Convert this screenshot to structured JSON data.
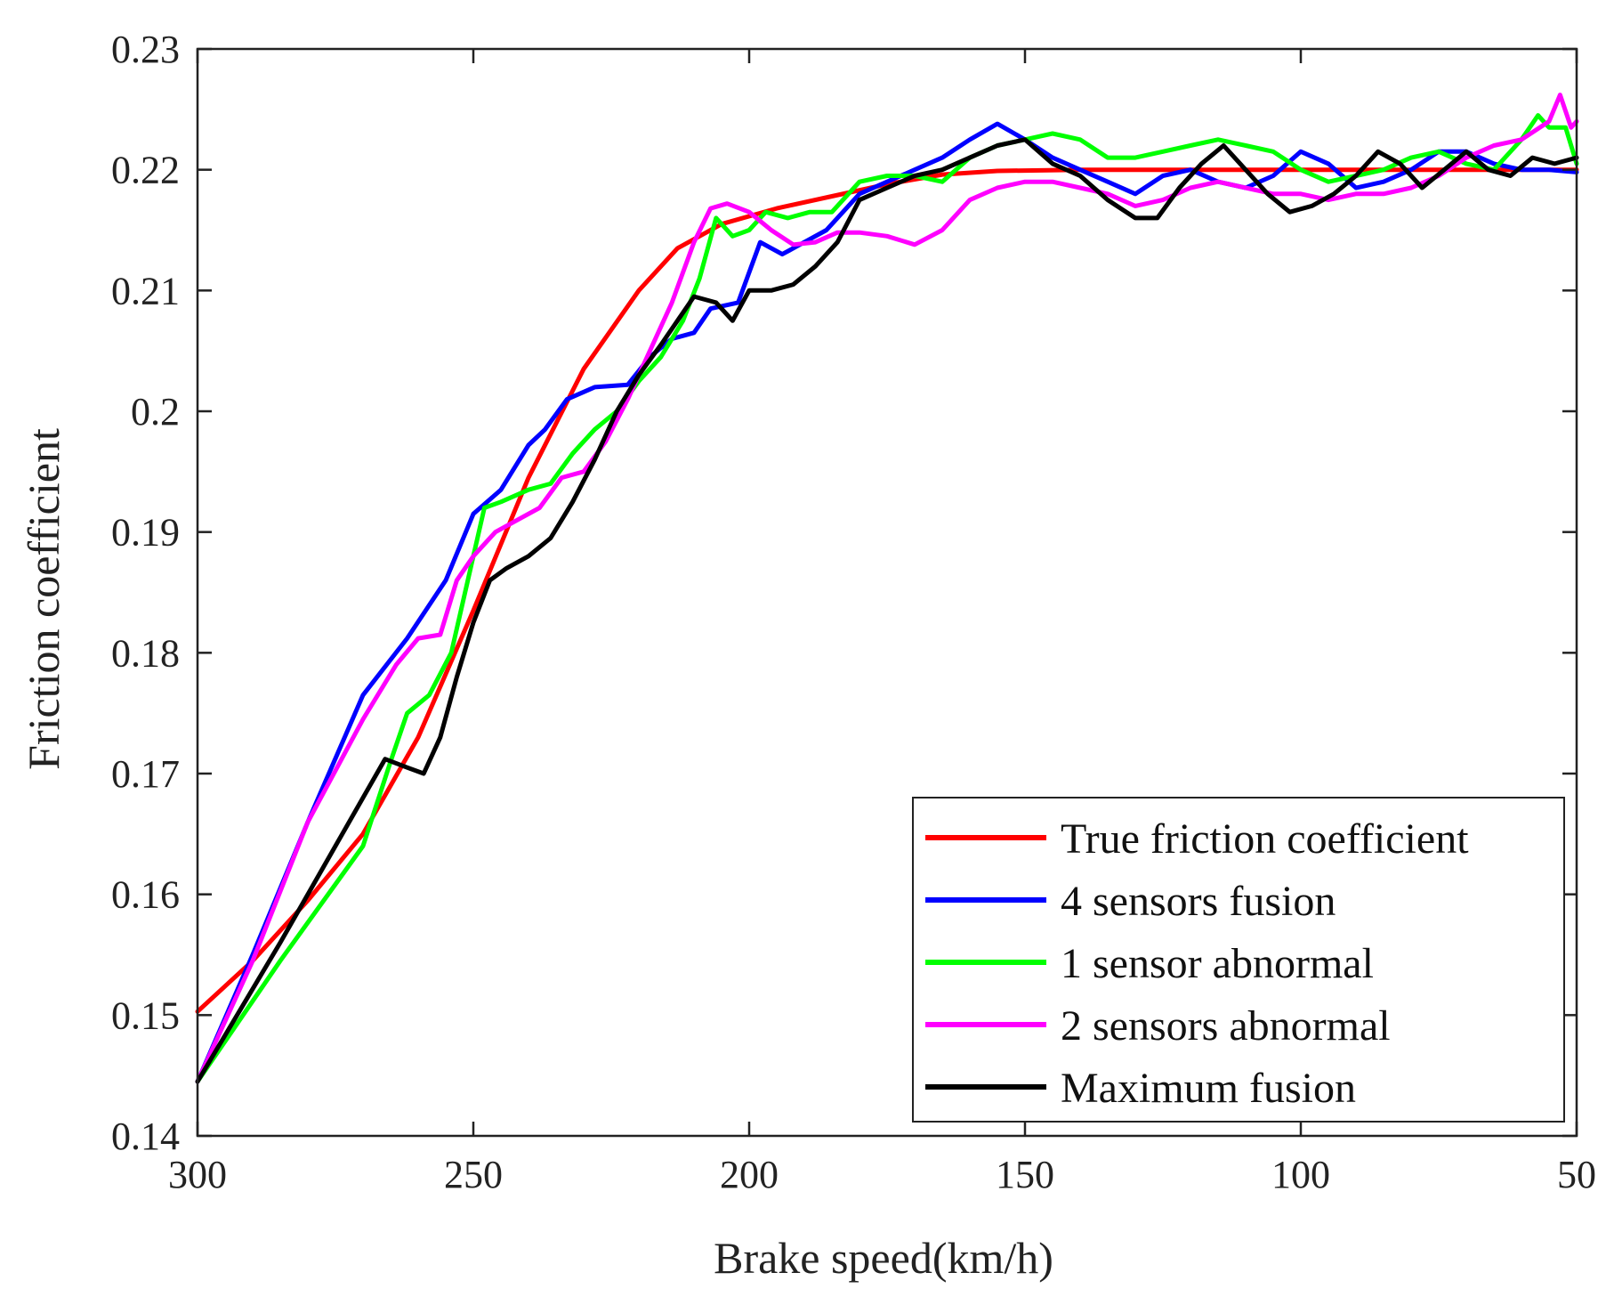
{
  "chart_data": {
    "type": "line",
    "title": "",
    "xlabel": "Brake speed(km/h)",
    "ylabel": "Friction coefficient",
    "xlim": [
      300,
      50
    ],
    "ylim": [
      0.14,
      0.23
    ],
    "x_reversed": true,
    "xticks": [
      300,
      250,
      200,
      150,
      100,
      50
    ],
    "xtick_labels": [
      "300",
      "250",
      "200",
      "150",
      "100",
      "50"
    ],
    "yticks": [
      0.14,
      0.15,
      0.16,
      0.17,
      0.18,
      0.19,
      0.2,
      0.21,
      0.22,
      0.23
    ],
    "ytick_labels": [
      "0.14",
      "0.15",
      "0.16",
      "0.17",
      "0.18",
      "0.19",
      "0.2",
      "0.21",
      "0.22",
      "0.23"
    ],
    "grid": false,
    "legend_position": "bottom-right",
    "series": [
      {
        "name": "True friction coefficient",
        "color": "#ff0000",
        "points": [
          [
            300,
            0.1503
          ],
          [
            290,
            0.1545
          ],
          [
            280,
            0.1595
          ],
          [
            270,
            0.165
          ],
          [
            260,
            0.173
          ],
          [
            250,
            0.1835
          ],
          [
            240,
            0.1945
          ],
          [
            230,
            0.2035
          ],
          [
            220,
            0.21
          ],
          [
            213,
            0.2135
          ],
          [
            205,
            0.2155
          ],
          [
            195,
            0.2168
          ],
          [
            185,
            0.2178
          ],
          [
            175,
            0.2188
          ],
          [
            165,
            0.2196
          ],
          [
            155,
            0.2199
          ],
          [
            140,
            0.22
          ],
          [
            120,
            0.22
          ],
          [
            100,
            0.22
          ],
          [
            80,
            0.22
          ],
          [
            60,
            0.22
          ],
          [
            50,
            0.22
          ]
        ]
      },
      {
        "name": "4 sensors fusion",
        "color": "#0000ff",
        "points": [
          [
            300,
            0.1445
          ],
          [
            290,
            0.155
          ],
          [
            280,
            0.166
          ],
          [
            270,
            0.1765
          ],
          [
            262,
            0.1812
          ],
          [
            255,
            0.186
          ],
          [
            250,
            0.1915
          ],
          [
            245,
            0.1935
          ],
          [
            240,
            0.1972
          ],
          [
            237,
            0.1985
          ],
          [
            233,
            0.201
          ],
          [
            228,
            0.202
          ],
          [
            222,
            0.2022
          ],
          [
            218,
            0.2045
          ],
          [
            214,
            0.206
          ],
          [
            210,
            0.2065
          ],
          [
            207,
            0.2085
          ],
          [
            202,
            0.209
          ],
          [
            198,
            0.214
          ],
          [
            194,
            0.213
          ],
          [
            190,
            0.214
          ],
          [
            186,
            0.215
          ],
          [
            180,
            0.218
          ],
          [
            175,
            0.219
          ],
          [
            170,
            0.22
          ],
          [
            165,
            0.221
          ],
          [
            160,
            0.2225
          ],
          [
            155,
            0.2238
          ],
          [
            150,
            0.2225
          ],
          [
            145,
            0.221
          ],
          [
            140,
            0.22
          ],
          [
            135,
            0.219
          ],
          [
            130,
            0.218
          ],
          [
            125,
            0.2195
          ],
          [
            120,
            0.22
          ],
          [
            115,
            0.219
          ],
          [
            110,
            0.2185
          ],
          [
            105,
            0.2195
          ],
          [
            100,
            0.2215
          ],
          [
            95,
            0.2205
          ],
          [
            90,
            0.2185
          ],
          [
            85,
            0.219
          ],
          [
            80,
            0.22
          ],
          [
            75,
            0.2215
          ],
          [
            70,
            0.2215
          ],
          [
            65,
            0.2205
          ],
          [
            60,
            0.22
          ],
          [
            55,
            0.22
          ],
          [
            50,
            0.2198
          ]
        ]
      },
      {
        "name": "1 sensor abnormal",
        "color": "#00ff00",
        "points": [
          [
            300,
            0.1445
          ],
          [
            285,
            0.1545
          ],
          [
            270,
            0.164
          ],
          [
            265,
            0.171
          ],
          [
            262,
            0.175
          ],
          [
            258,
            0.1765
          ],
          [
            254,
            0.18
          ],
          [
            251,
            0.186
          ],
          [
            248,
            0.192
          ],
          [
            245,
            0.1925
          ],
          [
            240,
            0.1935
          ],
          [
            236,
            0.194
          ],
          [
            232,
            0.1965
          ],
          [
            228,
            0.1985
          ],
          [
            224,
            0.2
          ],
          [
            220,
            0.2025
          ],
          [
            216,
            0.2045
          ],
          [
            212,
            0.2075
          ],
          [
            209,
            0.211
          ],
          [
            206,
            0.216
          ],
          [
            203,
            0.2145
          ],
          [
            200,
            0.215
          ],
          [
            197,
            0.2165
          ],
          [
            193,
            0.216
          ],
          [
            189,
            0.2165
          ],
          [
            185,
            0.2165
          ],
          [
            180,
            0.219
          ],
          [
            175,
            0.2195
          ],
          [
            170,
            0.2195
          ],
          [
            165,
            0.219
          ],
          [
            160,
            0.221
          ],
          [
            155,
            0.222
          ],
          [
            150,
            0.2225
          ],
          [
            145,
            0.223
          ],
          [
            140,
            0.2225
          ],
          [
            135,
            0.221
          ],
          [
            130,
            0.221
          ],
          [
            125,
            0.2215
          ],
          [
            120,
            0.222
          ],
          [
            115,
            0.2225
          ],
          [
            110,
            0.222
          ],
          [
            105,
            0.2215
          ],
          [
            100,
            0.22
          ],
          [
            95,
            0.219
          ],
          [
            90,
            0.2195
          ],
          [
            85,
            0.22
          ],
          [
            80,
            0.221
          ],
          [
            75,
            0.2215
          ],
          [
            70,
            0.2205
          ],
          [
            65,
            0.22
          ],
          [
            60,
            0.2225
          ],
          [
            57,
            0.2245
          ],
          [
            55,
            0.2235
          ],
          [
            52,
            0.2235
          ],
          [
            50,
            0.2205
          ]
        ]
      },
      {
        "name": "2 sensors abnormal",
        "color": "#ff00ff",
        "points": [
          [
            300,
            0.1445
          ],
          [
            290,
            0.1545
          ],
          [
            280,
            0.166
          ],
          [
            270,
            0.1745
          ],
          [
            264,
            0.179
          ],
          [
            260,
            0.1812
          ],
          [
            256,
            0.1815
          ],
          [
            253,
            0.186
          ],
          [
            250,
            0.188
          ],
          [
            246,
            0.19
          ],
          [
            242,
            0.191
          ],
          [
            238,
            0.192
          ],
          [
            234,
            0.1945
          ],
          [
            230,
            0.195
          ],
          [
            226,
            0.1975
          ],
          [
            222,
            0.201
          ],
          [
            218,
            0.205
          ],
          [
            214,
            0.209
          ],
          [
            210,
            0.214
          ],
          [
            207,
            0.2168
          ],
          [
            204,
            0.2172
          ],
          [
            200,
            0.2165
          ],
          [
            196,
            0.215
          ],
          [
            192,
            0.2138
          ],
          [
            188,
            0.214
          ],
          [
            184,
            0.2148
          ],
          [
            180,
            0.2148
          ],
          [
            175,
            0.2145
          ],
          [
            170,
            0.2138
          ],
          [
            165,
            0.215
          ],
          [
            160,
            0.2175
          ],
          [
            155,
            0.2185
          ],
          [
            150,
            0.219
          ],
          [
            145,
            0.219
          ],
          [
            140,
            0.2185
          ],
          [
            135,
            0.218
          ],
          [
            130,
            0.217
          ],
          [
            125,
            0.2175
          ],
          [
            120,
            0.2185
          ],
          [
            115,
            0.219
          ],
          [
            110,
            0.2185
          ],
          [
            105,
            0.218
          ],
          [
            100,
            0.218
          ],
          [
            95,
            0.2175
          ],
          [
            90,
            0.218
          ],
          [
            85,
            0.218
          ],
          [
            80,
            0.2185
          ],
          [
            75,
            0.2195
          ],
          [
            70,
            0.221
          ],
          [
            65,
            0.222
          ],
          [
            60,
            0.2225
          ],
          [
            55,
            0.224
          ],
          [
            53,
            0.2262
          ],
          [
            51,
            0.2235
          ],
          [
            50,
            0.224
          ]
        ]
      },
      {
        "name": "Maximum fusion",
        "color": "#000000",
        "points": [
          [
            300,
            0.1445
          ],
          [
            285,
            0.156
          ],
          [
            275,
            0.164
          ],
          [
            266,
            0.1712
          ],
          [
            262,
            0.1705
          ],
          [
            259,
            0.17
          ],
          [
            256,
            0.173
          ],
          [
            253,
            0.178
          ],
          [
            250,
            0.1825
          ],
          [
            247,
            0.186
          ],
          [
            244,
            0.187
          ],
          [
            240,
            0.188
          ],
          [
            236,
            0.1895
          ],
          [
            232,
            0.1925
          ],
          [
            228,
            0.196
          ],
          [
            224,
            0.2
          ],
          [
            220,
            0.203
          ],
          [
            216,
            0.2055
          ],
          [
            213,
            0.2075
          ],
          [
            210,
            0.2095
          ],
          [
            206,
            0.209
          ],
          [
            203,
            0.2075
          ],
          [
            200,
            0.21
          ],
          [
            196,
            0.21
          ],
          [
            192,
            0.2105
          ],
          [
            188,
            0.212
          ],
          [
            184,
            0.214
          ],
          [
            180,
            0.2175
          ],
          [
            175,
            0.2185
          ],
          [
            170,
            0.2195
          ],
          [
            165,
            0.22
          ],
          [
            160,
            0.221
          ],
          [
            155,
            0.222
          ],
          [
            150,
            0.2225
          ],
          [
            145,
            0.2205
          ],
          [
            140,
            0.2195
          ],
          [
            135,
            0.2175
          ],
          [
            130,
            0.216
          ],
          [
            126,
            0.216
          ],
          [
            122,
            0.2185
          ],
          [
            118,
            0.2205
          ],
          [
            114,
            0.222
          ],
          [
            110,
            0.22
          ],
          [
            106,
            0.218
          ],
          [
            102,
            0.2165
          ],
          [
            98,
            0.217
          ],
          [
            94,
            0.218
          ],
          [
            90,
            0.2195
          ],
          [
            86,
            0.2215
          ],
          [
            82,
            0.2205
          ],
          [
            78,
            0.2185
          ],
          [
            74,
            0.22
          ],
          [
            70,
            0.2215
          ],
          [
            66,
            0.22
          ],
          [
            62,
            0.2195
          ],
          [
            58,
            0.221
          ],
          [
            54,
            0.2205
          ],
          [
            50,
            0.221
          ]
        ]
      }
    ]
  }
}
